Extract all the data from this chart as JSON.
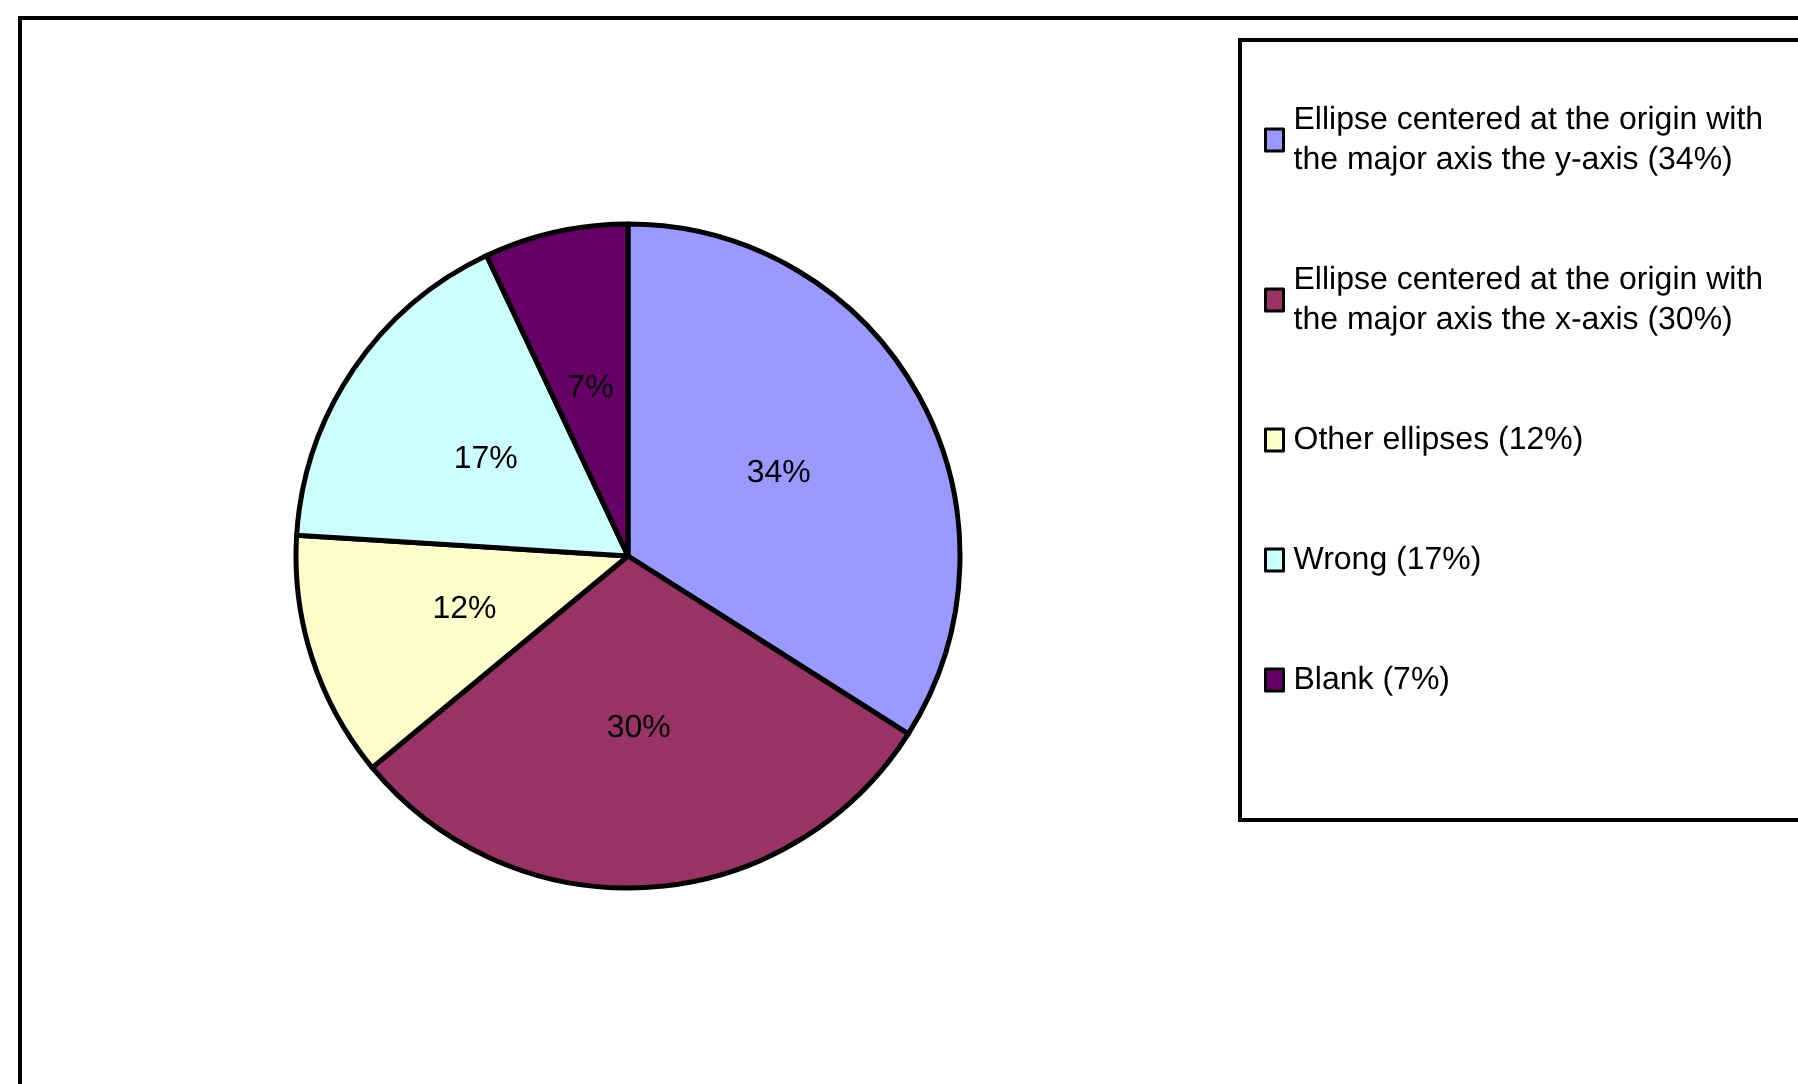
{
  "chart_data": {
    "type": "pie",
    "categories": [
      "Ellipse centered at the origin with the major axis the y-axis (34%)",
      "Ellipse centered at the origin with the major axis the x-axis (30%)",
      "Other ellipses (12%)",
      "Wrong (17%)",
      "Blank (7%)"
    ],
    "values": [
      34,
      30,
      12,
      17,
      7
    ],
    "colors": [
      "#9999ff",
      "#993366",
      "#ffffcc",
      "#ccffff",
      "#660066"
    ],
    "value_labels": [
      "34%",
      "30%",
      "12%",
      "17%",
      "7%"
    ],
    "legend": "right"
  }
}
